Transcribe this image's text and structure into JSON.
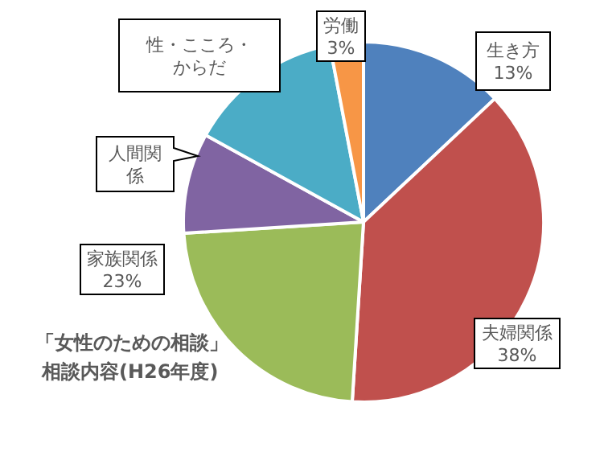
{
  "chart_data": {
    "type": "pie",
    "title": "「女性のための相談」",
    "subtitle": "相談内容(H26年度)",
    "categories": [
      "生き方",
      "夫婦関係",
      "家族関係",
      "人間関係",
      "性・こころ・からだ",
      "労働"
    ],
    "values": [
      13,
      38,
      23,
      9,
      14,
      3
    ],
    "colors": [
      "#4f81bd",
      "#c0504d",
      "#9bbb59",
      "#8064a2",
      "#4bacc6",
      "#f79646"
    ],
    "value_labels": [
      "13%",
      "38%",
      "23%",
      null,
      null,
      "3%"
    ]
  }
}
